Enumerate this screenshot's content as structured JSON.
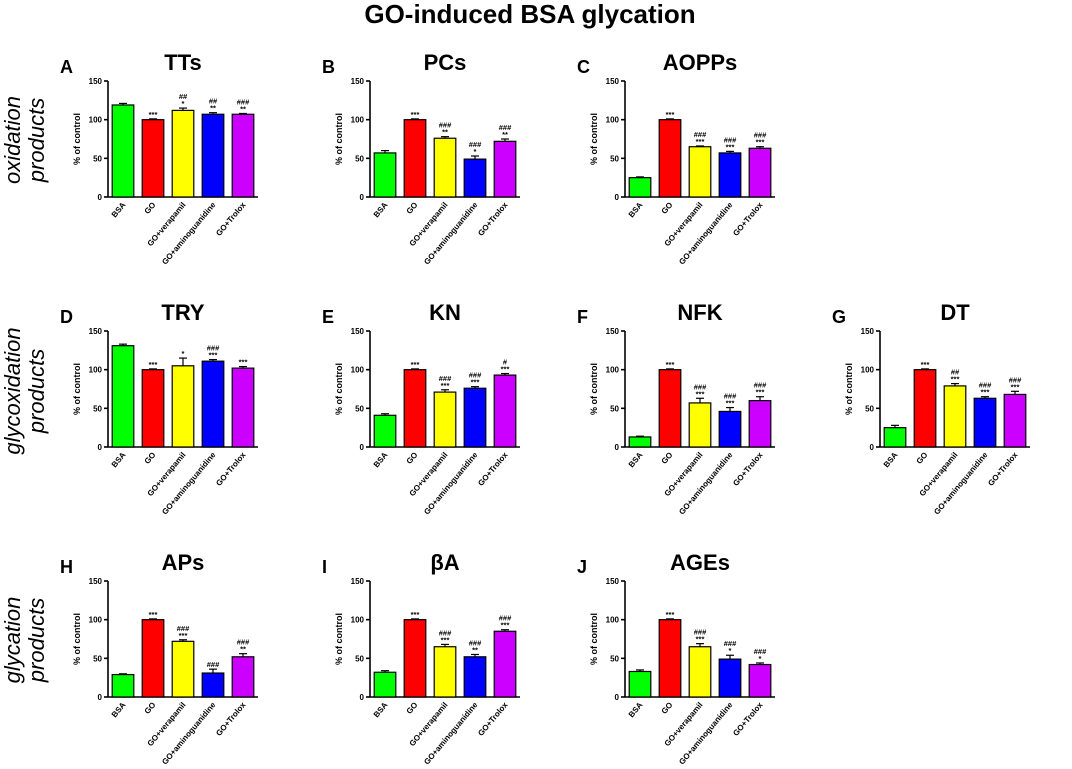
{
  "figure_title": "GO-induced BSA glycation",
  "row_labels": [
    [
      "oxidation",
      "products"
    ],
    [
      "glycoxidation",
      "products"
    ],
    [
      "glycation",
      "products"
    ]
  ],
  "colors": [
    "#00ff00",
    "#ff0000",
    "#ffff00",
    "#0000ff",
    "#cc00ff"
  ],
  "chart_data": [
    {
      "letter": "A",
      "type": "bar",
      "title": "TTs",
      "ylabel": "% of control",
      "ylim": [
        0,
        150
      ],
      "yticks": [
        0,
        50,
        100,
        150
      ],
      "categories": [
        "BSA",
        "GO",
        "GO+verapamil",
        "GO+aminoguanidine",
        "GO+Trolox"
      ],
      "values": [
        119,
        100,
        112,
        107,
        107
      ],
      "errors": [
        2,
        1,
        3,
        2,
        1
      ],
      "sig_top": [
        "",
        "",
        "##",
        "##",
        "###"
      ],
      "sig_bottom": [
        "",
        "***",
        "*",
        "**",
        "**"
      ]
    },
    {
      "letter": "B",
      "type": "bar",
      "title": "PCs",
      "ylabel": "% of control",
      "ylim": [
        0,
        150
      ],
      "yticks": [
        0,
        50,
        100,
        150
      ],
      "categories": [
        "BSA",
        "GO",
        "GO+verapamil",
        "GO+aminoguanidine",
        "GO+Trolox"
      ],
      "values": [
        57,
        100,
        76,
        49,
        72
      ],
      "errors": [
        3,
        1,
        2,
        4,
        3
      ],
      "sig_top": [
        "",
        "",
        "###",
        "###",
        "###"
      ],
      "sig_bottom": [
        "",
        "***",
        "**",
        "*",
        "**"
      ]
    },
    {
      "letter": "C",
      "type": "bar",
      "title": "AOPPs",
      "ylabel": "% of control",
      "ylim": [
        0,
        150
      ],
      "yticks": [
        0,
        50,
        100,
        150
      ],
      "categories": [
        "BSA",
        "GO",
        "GO+verapamil",
        "GO+aminoguanidine",
        "GO+Trolox"
      ],
      "values": [
        25,
        100,
        65,
        57,
        63
      ],
      "errors": [
        1,
        1,
        1,
        2,
        2
      ],
      "sig_top": [
        "",
        "",
        "###",
        "###",
        "###"
      ],
      "sig_bottom": [
        "",
        "***",
        "***",
        "***",
        "***"
      ]
    },
    {
      "letter": "D",
      "type": "bar",
      "title": "TRY",
      "ylabel": "% of control",
      "ylim": [
        0,
        150
      ],
      "yticks": [
        0,
        50,
        100,
        150
      ],
      "categories": [
        "BSA",
        "GO",
        "GO+verapamil",
        "GO+aminoguanidine",
        "GO+Trolox"
      ],
      "values": [
        131,
        100,
        105,
        111,
        102
      ],
      "errors": [
        2,
        1,
        10,
        2,
        2
      ],
      "sig_top": [
        "",
        "",
        "",
        "###",
        ""
      ],
      "sig_bottom": [
        "",
        "***",
        "*",
        "***",
        "***"
      ]
    },
    {
      "letter": "E",
      "type": "bar",
      "title": "KN",
      "ylabel": "% of control",
      "ylim": [
        0,
        150
      ],
      "yticks": [
        0,
        50,
        100,
        150
      ],
      "categories": [
        "BSA",
        "GO",
        "GO+verapamil",
        "GO+aminoguanidine",
        "GO+Trolox"
      ],
      "values": [
        41,
        100,
        71,
        76,
        93
      ],
      "errors": [
        2,
        1,
        3,
        2,
        2
      ],
      "sig_top": [
        "",
        "",
        "###",
        "###",
        "#"
      ],
      "sig_bottom": [
        "",
        "***",
        "***",
        "***",
        "***"
      ]
    },
    {
      "letter": "F",
      "type": "bar",
      "title": "NFK",
      "ylabel": "% of control",
      "ylim": [
        0,
        150
      ],
      "yticks": [
        0,
        50,
        100,
        150
      ],
      "categories": [
        "BSA",
        "GO",
        "GO+verapamil",
        "GO+aminoguanidine",
        "GO+Trolox"
      ],
      "values": [
        13,
        100,
        57,
        46,
        60
      ],
      "errors": [
        1,
        1,
        6,
        5,
        5
      ],
      "sig_top": [
        "",
        "",
        "###",
        "###",
        "###"
      ],
      "sig_bottom": [
        "",
        "***",
        "***",
        "***",
        "***"
      ]
    },
    {
      "letter": "G",
      "type": "bar",
      "title": "DT",
      "ylabel": "% of control",
      "ylim": [
        0,
        150
      ],
      "yticks": [
        0,
        50,
        100,
        150
      ],
      "categories": [
        "BSA",
        "GO",
        "GO+verapamil",
        "GO+aminoguanidine",
        "GO+Trolox"
      ],
      "values": [
        25,
        100,
        79,
        63,
        68
      ],
      "errors": [
        3,
        1,
        3,
        2,
        4
      ],
      "sig_top": [
        "",
        "",
        "##",
        "###",
        "###"
      ],
      "sig_bottom": [
        "",
        "***",
        "***",
        "***",
        "***"
      ]
    },
    {
      "letter": "H",
      "type": "bar",
      "title": "APs",
      "ylabel": "% of control",
      "ylim": [
        0,
        150
      ],
      "yticks": [
        0,
        50,
        100,
        150
      ],
      "categories": [
        "BSA",
        "GO",
        "GO+verapamil",
        "GO+aminoguanidine",
        "GO+Trolox"
      ],
      "values": [
        29,
        100,
        72,
        31,
        52
      ],
      "errors": [
        1,
        1,
        2,
        5,
        4
      ],
      "sig_top": [
        "",
        "",
        "###",
        "",
        "###"
      ],
      "sig_bottom": [
        "",
        "***",
        "***",
        "###",
        "**"
      ]
    },
    {
      "letter": "I",
      "type": "bar",
      "title": "βA",
      "ylabel": "% of control",
      "ylim": [
        0,
        150
      ],
      "yticks": [
        0,
        50,
        100,
        150
      ],
      "categories": [
        "BSA",
        "GO",
        "GO+verapamil",
        "GO+aminoguanidine",
        "GO+Trolox"
      ],
      "values": [
        32,
        100,
        65,
        52,
        85
      ],
      "errors": [
        2,
        1,
        3,
        3,
        2
      ],
      "sig_top": [
        "",
        "",
        "###",
        "###",
        "###"
      ],
      "sig_bottom": [
        "",
        "***",
        "***",
        "**",
        "***"
      ]
    },
    {
      "letter": "J",
      "type": "bar",
      "title": "AGEs",
      "ylabel": "% of control",
      "ylim": [
        0,
        150
      ],
      "yticks": [
        0,
        50,
        100,
        150
      ],
      "categories": [
        "BSA",
        "GO",
        "GO+verapamil",
        "GO+aminoguanidine",
        "GO+Trolox"
      ],
      "values": [
        33,
        100,
        65,
        49,
        42
      ],
      "errors": [
        2,
        1,
        4,
        5,
        2
      ],
      "sig_top": [
        "",
        "",
        "###",
        "###",
        "###"
      ],
      "sig_bottom": [
        "",
        "***",
        "***",
        "*",
        "*"
      ]
    }
  ]
}
